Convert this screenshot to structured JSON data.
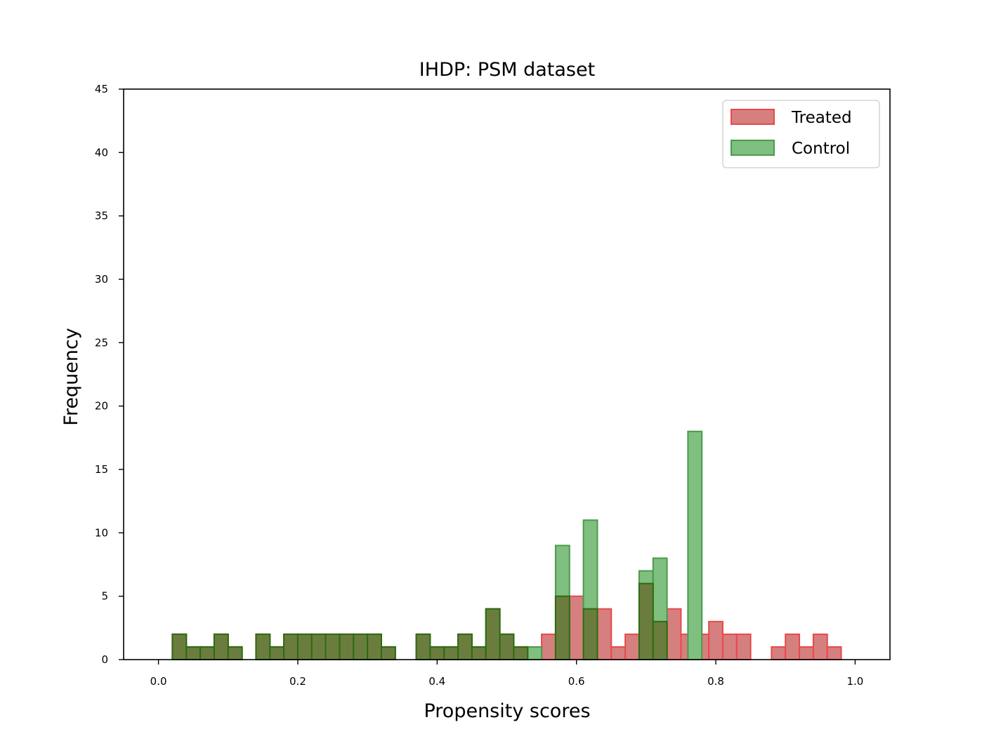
{
  "chart_data": {
    "type": "bar",
    "title": "IHDP: PSM dataset",
    "xlabel": "Propensity scores",
    "ylabel": "Frequency",
    "xlim": [
      -0.05,
      1.05
    ],
    "ylim": [
      0,
      45
    ],
    "bin_width": 0.02,
    "xticks": [
      0.0,
      0.2,
      0.4,
      0.6,
      0.8,
      1.0
    ],
    "xtick_labels": [
      "0.0",
      "0.2",
      "0.4",
      "0.6",
      "0.8",
      "1.0"
    ],
    "yticks": [
      0,
      5,
      10,
      15,
      20,
      25,
      30,
      35,
      40,
      45
    ],
    "ytick_labels": [
      "0",
      "5",
      "10",
      "15",
      "20",
      "25",
      "30",
      "35",
      "40",
      "45"
    ],
    "legend_position": "top-right",
    "grid": false,
    "series": [
      {
        "name": "Treated",
        "fill_color": "#d67f7f",
        "edge_color": "#e8494c",
        "bins": [
          {
            "x": 0.02,
            "y": 2
          },
          {
            "x": 0.04,
            "y": 1
          },
          {
            "x": 0.06,
            "y": 1
          },
          {
            "x": 0.08,
            "y": 2
          },
          {
            "x": 0.1,
            "y": 1
          },
          {
            "x": 0.14,
            "y": 2
          },
          {
            "x": 0.16,
            "y": 1
          },
          {
            "x": 0.18,
            "y": 2
          },
          {
            "x": 0.2,
            "y": 2
          },
          {
            "x": 0.22,
            "y": 2
          },
          {
            "x": 0.24,
            "y": 2
          },
          {
            "x": 0.26,
            "y": 2
          },
          {
            "x": 0.28,
            "y": 2
          },
          {
            "x": 0.3,
            "y": 2
          },
          {
            "x": 0.32,
            "y": 1
          },
          {
            "x": 0.37,
            "y": 2
          },
          {
            "x": 0.39,
            "y": 1
          },
          {
            "x": 0.41,
            "y": 1
          },
          {
            "x": 0.43,
            "y": 2
          },
          {
            "x": 0.45,
            "y": 1
          },
          {
            "x": 0.47,
            "y": 4
          },
          {
            "x": 0.49,
            "y": 2
          },
          {
            "x": 0.51,
            "y": 1
          },
          {
            "x": 0.55,
            "y": 2
          },
          {
            "x": 0.57,
            "y": 5
          },
          {
            "x": 0.59,
            "y": 5
          },
          {
            "x": 0.61,
            "y": 4
          },
          {
            "x": 0.63,
            "y": 4
          },
          {
            "x": 0.65,
            "y": 1
          },
          {
            "x": 0.67,
            "y": 2
          },
          {
            "x": 0.69,
            "y": 6
          },
          {
            "x": 0.71,
            "y": 3
          },
          {
            "x": 0.73,
            "y": 4
          },
          {
            "x": 0.75,
            "y": 2
          },
          {
            "x": 0.77,
            "y": 2
          },
          {
            "x": 0.79,
            "y": 3
          },
          {
            "x": 0.81,
            "y": 2
          },
          {
            "x": 0.83,
            "y": 2
          },
          {
            "x": 0.88,
            "y": 1
          },
          {
            "x": 0.9,
            "y": 2
          },
          {
            "x": 0.92,
            "y": 1
          },
          {
            "x": 0.94,
            "y": 2
          },
          {
            "x": 0.96,
            "y": 1
          }
        ]
      },
      {
        "name": "Control",
        "fill_color": "#7fbf7f",
        "edge_color": "#4a9a4a",
        "bins": [
          {
            "x": 0.02,
            "y": 2
          },
          {
            "x": 0.04,
            "y": 1
          },
          {
            "x": 0.06,
            "y": 1
          },
          {
            "x": 0.08,
            "y": 2
          },
          {
            "x": 0.1,
            "y": 1
          },
          {
            "x": 0.14,
            "y": 2
          },
          {
            "x": 0.16,
            "y": 1
          },
          {
            "x": 0.18,
            "y": 2
          },
          {
            "x": 0.2,
            "y": 2
          },
          {
            "x": 0.22,
            "y": 2
          },
          {
            "x": 0.24,
            "y": 2
          },
          {
            "x": 0.26,
            "y": 2
          },
          {
            "x": 0.28,
            "y": 2
          },
          {
            "x": 0.3,
            "y": 2
          },
          {
            "x": 0.32,
            "y": 1
          },
          {
            "x": 0.37,
            "y": 2
          },
          {
            "x": 0.39,
            "y": 1
          },
          {
            "x": 0.41,
            "y": 1
          },
          {
            "x": 0.43,
            "y": 2
          },
          {
            "x": 0.45,
            "y": 1
          },
          {
            "x": 0.47,
            "y": 4
          },
          {
            "x": 0.49,
            "y": 2
          },
          {
            "x": 0.51,
            "y": 1
          },
          {
            "x": 0.53,
            "y": 1
          },
          {
            "x": 0.57,
            "y": 9
          },
          {
            "x": 0.61,
            "y": 11
          },
          {
            "x": 0.69,
            "y": 7
          },
          {
            "x": 0.71,
            "y": 8
          },
          {
            "x": 0.76,
            "y": 18
          }
        ]
      }
    ],
    "overlap_color": "#6b7d3e",
    "overlap_edge_color": "#2d6b10"
  }
}
